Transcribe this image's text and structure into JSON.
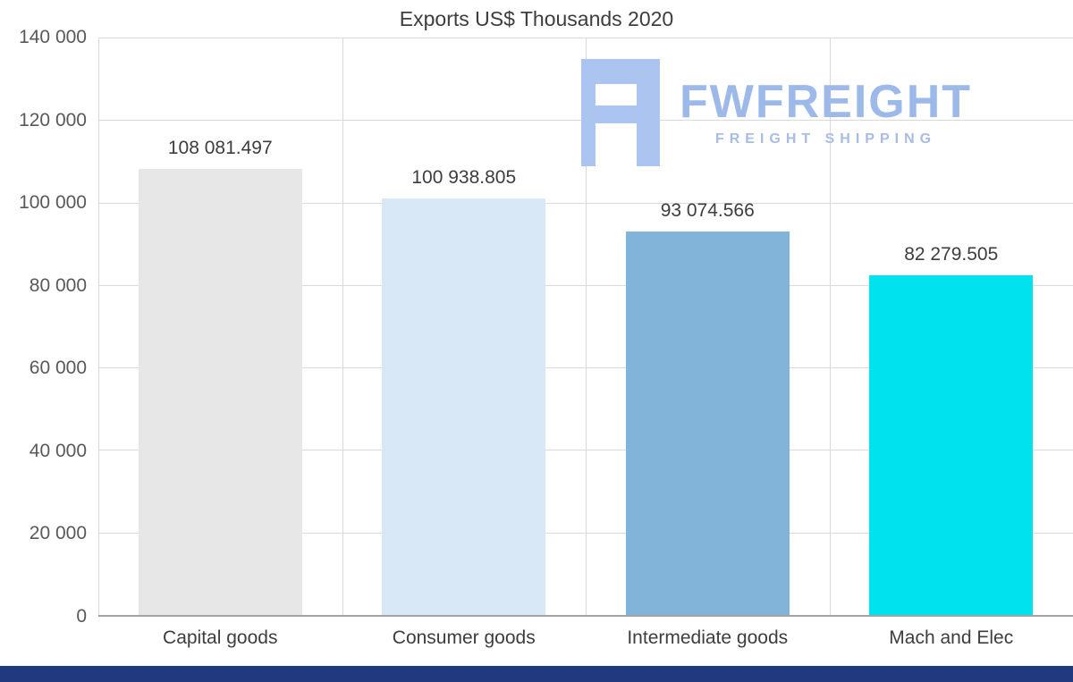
{
  "chart_data": {
    "type": "bar",
    "title": "Exports US$ Thousands 2020",
    "categories": [
      "Capital goods",
      "Consumer goods",
      "Intermediate goods",
      "Mach and Elec"
    ],
    "values": [
      108081.497,
      100938.805,
      93074.566,
      82279.505
    ],
    "value_labels": [
      "108 081.497",
      "100 938.805",
      "93 074.566",
      "82 279.505"
    ],
    "bar_colors": [
      "#e7e7e7",
      "#d9e8f7",
      "#82b4da",
      "#00e3ee"
    ],
    "ylim": [
      0,
      140000
    ],
    "ytick_labels": [
      "140 000",
      "120 000",
      "100 000",
      "80 000",
      "60 000",
      "40 000",
      "20 000",
      "0"
    ],
    "xlabel": "",
    "ylabel": "",
    "grid": true,
    "legend": false,
    "gridline_color": "#d9d9d9",
    "axis_line_color": "#a3a3a3"
  },
  "watermark": {
    "brand": "FWFREIGHT",
    "tagline": "FREIGHT SHIPPING",
    "text_color": "#9db9ea",
    "tagline_color": "#a9bce6",
    "icon_color": "#abc5f0"
  },
  "footer_bar": {
    "color": "#20397f"
  }
}
